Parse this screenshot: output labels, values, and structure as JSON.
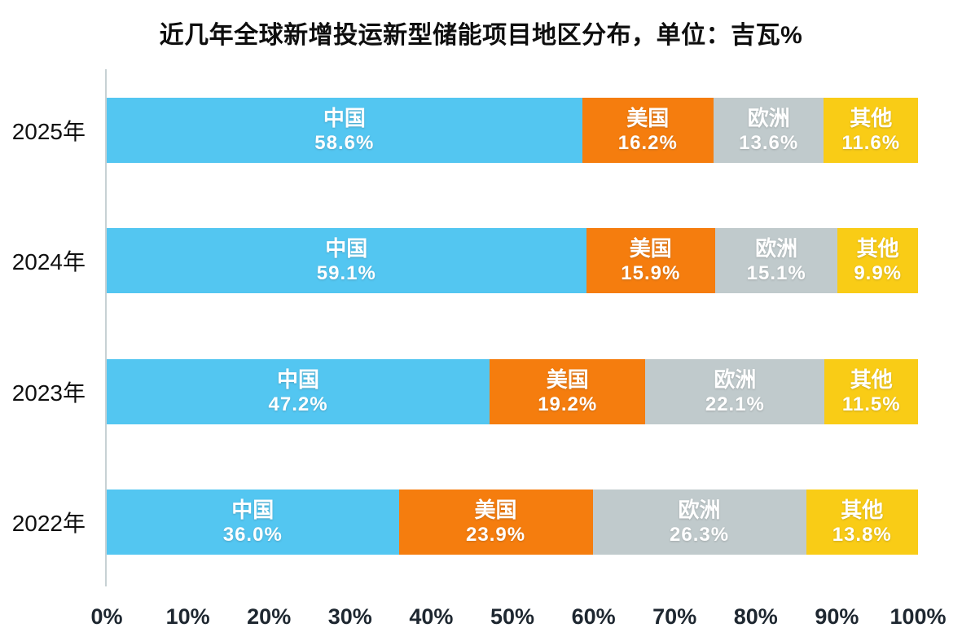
{
  "title": "近几年全球新增投运新型储能项目地区分布，单位：吉瓦%",
  "chart_data": {
    "type": "bar",
    "orientation": "horizontal",
    "stacked": true,
    "title": "近几年全球新增投运新型储能项目地区分布，单位：吉瓦%",
    "unit": "吉瓦%",
    "categories": [
      "2025年",
      "2024年",
      "2023年",
      "2022年"
    ],
    "series": [
      {
        "key": "china",
        "name": "中国",
        "color": "#53C6F1",
        "values": [
          58.6,
          59.1,
          47.2,
          36.0
        ]
      },
      {
        "key": "usa",
        "name": "美国",
        "color": "#F57D0E",
        "values": [
          16.2,
          15.9,
          19.2,
          23.9
        ]
      },
      {
        "key": "europe",
        "name": "欧洲",
        "color": "#C0CACC",
        "values": [
          13.6,
          15.1,
          22.1,
          26.3
        ]
      },
      {
        "key": "others",
        "name": "其他",
        "color": "#F9CC16",
        "values": [
          11.6,
          9.9,
          11.5,
          13.8
        ]
      }
    ],
    "x_axis": {
      "min": 0,
      "max": 100,
      "ticks": [
        "0%",
        "10%",
        "20%",
        "30%",
        "40%",
        "50%",
        "60%",
        "70%",
        "80%",
        "90%",
        "100%"
      ]
    },
    "value_suffix": "%",
    "value_decimals": 1,
    "legend": "none",
    "grid": "off",
    "label_color": "#FFFFFF",
    "axis_line_color": "#C7D1D4"
  }
}
